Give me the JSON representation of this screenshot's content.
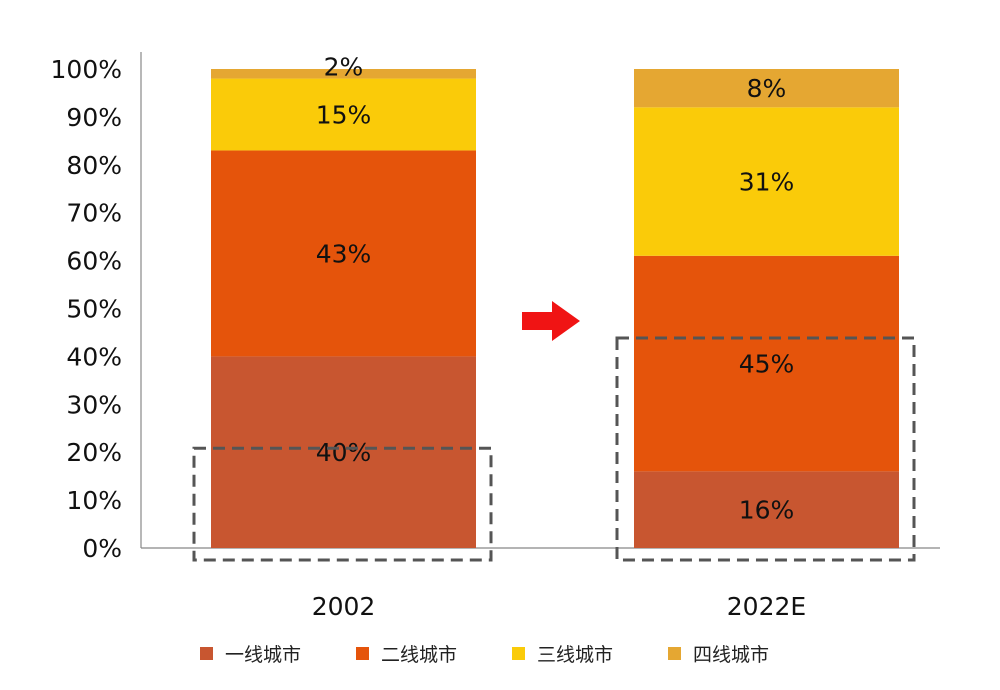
{
  "chart_data": {
    "type": "bar",
    "stacked": true,
    "categories": [
      "2002",
      "2022E"
    ],
    "series": [
      {
        "name": "一线城市",
        "values": [
          40,
          16
        ],
        "labels": [
          "40%",
          "16%"
        ],
        "color": "#C85630"
      },
      {
        "name": "二线城市",
        "values": [
          43,
          45
        ],
        "labels": [
          "43%",
          "45%"
        ],
        "color": "#E5540B"
      },
      {
        "name": "三线城市",
        "values": [
          15,
          31
        ],
        "labels": [
          "15%",
          "31%"
        ],
        "color": "#FACB09"
      },
      {
        "name": "四线城市",
        "values": [
          2,
          8
        ],
        "labels": [
          "2%",
          "8%"
        ],
        "color": "#E5A732"
      }
    ],
    "y_ticks": [
      "0%",
      "10%",
      "20%",
      "30%",
      "40%",
      "50%",
      "60%",
      "70%",
      "80%",
      "90%",
      "100%"
    ],
    "ylim": [
      0,
      100
    ],
    "legend_position": "bottom",
    "grid": false,
    "annotations": [
      {
        "type": "dashed-box",
        "category": "2002",
        "range": [
          0,
          20
        ]
      },
      {
        "type": "dashed-box",
        "category": "2022E",
        "range": [
          0,
          43
        ]
      },
      {
        "type": "arrow",
        "color": "#F01414",
        "direction": "right"
      }
    ]
  }
}
